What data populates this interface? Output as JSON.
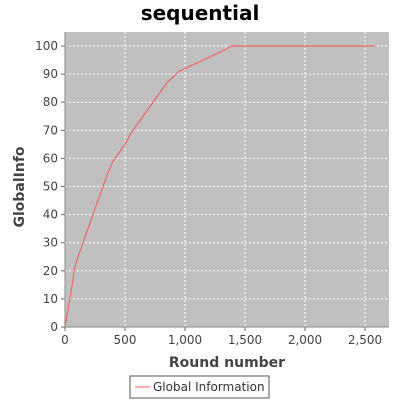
{
  "chart_data": {
    "type": "line",
    "title": "sequential",
    "xlabel": "Round number",
    "ylabel": "GlobalInfo",
    "xlim": [
      0,
      2700
    ],
    "ylim": [
      0,
      105
    ],
    "xticks": [
      0,
      500,
      1000,
      1500,
      2000,
      2500
    ],
    "xtick_labels": [
      "0",
      "500",
      "1,000",
      "1,500",
      "2,000",
      "2,500"
    ],
    "yticks": [
      0,
      10,
      20,
      30,
      40,
      50,
      60,
      70,
      80,
      90,
      100
    ],
    "ytick_labels": [
      "0",
      "10",
      "20",
      "30",
      "40",
      "50",
      "60",
      "70",
      "80",
      "90",
      "100"
    ],
    "grid": true,
    "plot_background": "#c0c0c0",
    "grid_color": "#ffffff",
    "legend_position": "bottom",
    "series": [
      {
        "name": "Global Information",
        "color": "#ff5555",
        "x": [
          0,
          20,
          40,
          60,
          80,
          100,
          150,
          200,
          250,
          300,
          350,
          400,
          450,
          500,
          550,
          600,
          650,
          700,
          750,
          800,
          850,
          900,
          950,
          1000,
          1100,
          1200,
          1300,
          1350,
          1380,
          1500,
          2000,
          2580
        ],
        "y": [
          0,
          5,
          10,
          15,
          21,
          24,
          30,
          36,
          42,
          48,
          54,
          59,
          62,
          65,
          69,
          72,
          75,
          78,
          81,
          84,
          87,
          89,
          91,
          92,
          94,
          96,
          98,
          99,
          100,
          100,
          100,
          100
        ]
      }
    ]
  }
}
